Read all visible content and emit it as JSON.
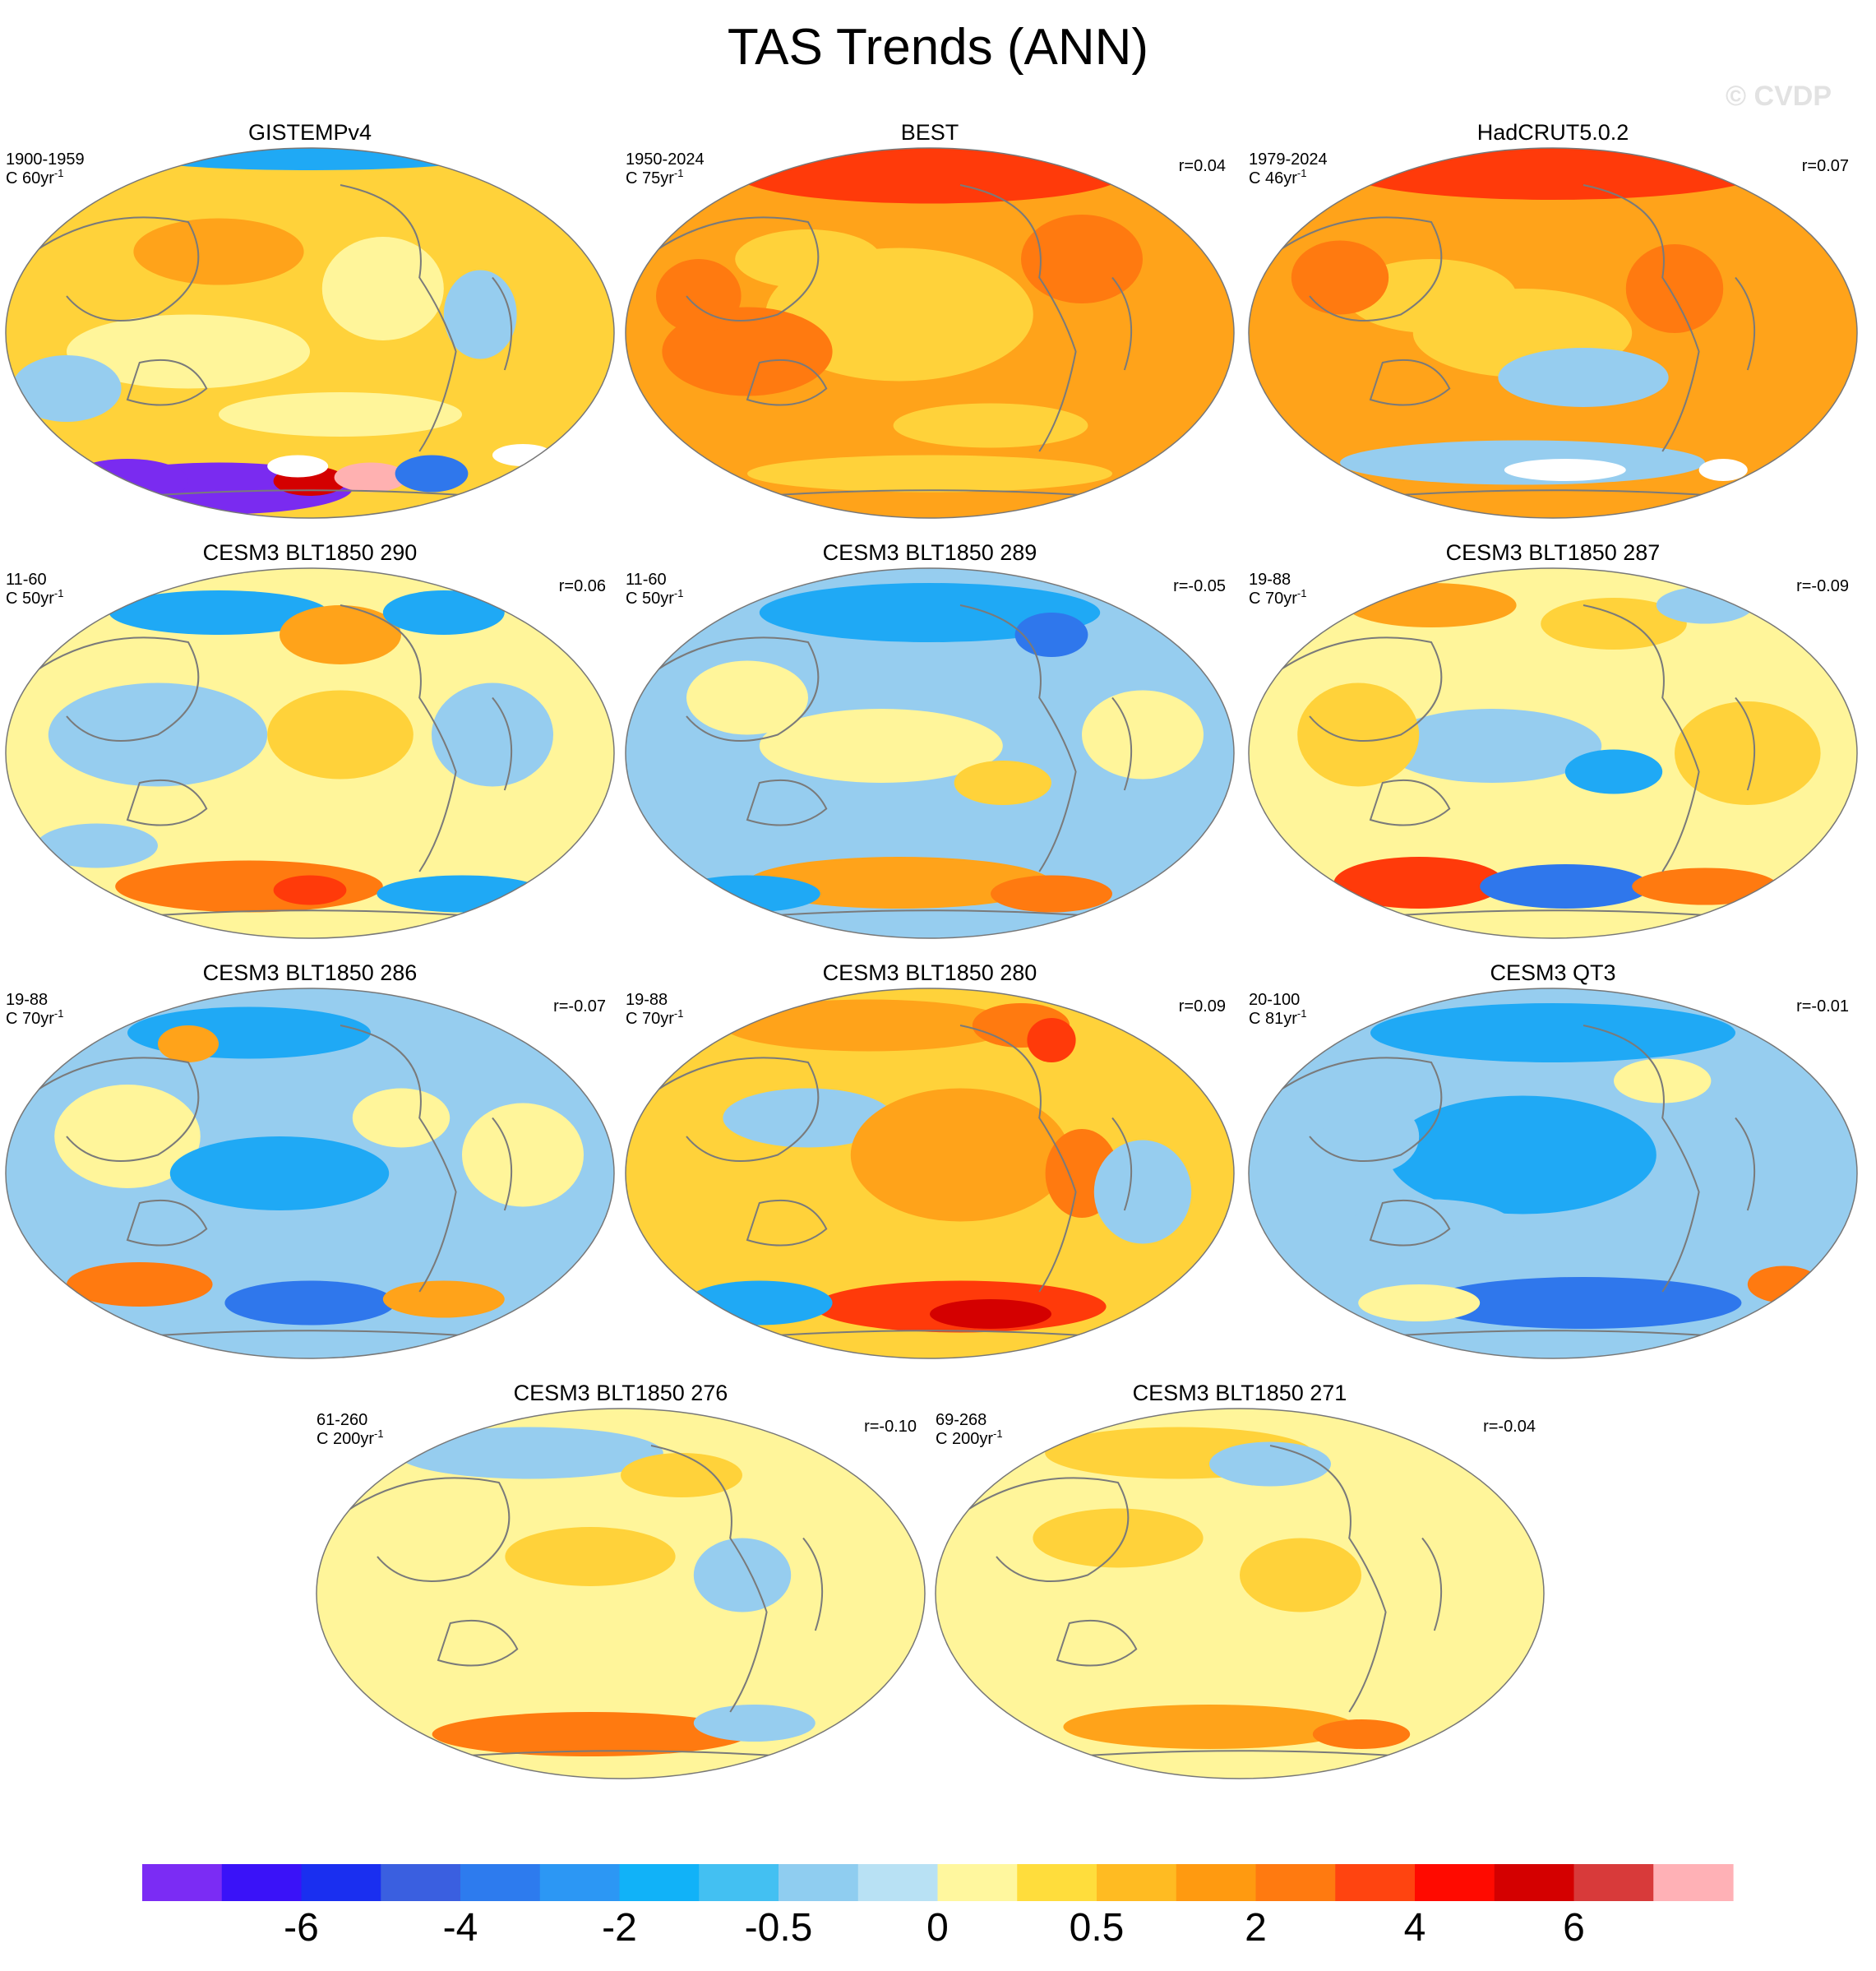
{
  "page_title": "TAS Trends (ANN)",
  "watermark": "© CVDP",
  "palette": {
    "cold_deep": "#7a2bf0",
    "cold": "#2f77ec",
    "cold_mid": "#1fa9f5",
    "cold_light": "#96cdef",
    "neutral_light": "#fff59a",
    "warm_light": "#ffd23a",
    "warm": "#ffa31a",
    "warm_mid": "#ff7a10",
    "hot": "#ff3a0a",
    "hot_deep": "#d40000",
    "pink": "#ffb1b1",
    "coast": "#7a7a7a",
    "missing": "#ffffff",
    "outline": "#777777"
  },
  "chart_data": {
    "type": "map-panels",
    "variable": "TAS",
    "season": "ANN",
    "panels": [
      {
        "title": "GISTEMPv4",
        "period": "1900-1959",
        "units": "C 60yr",
        "units_sup": "-1",
        "r": "",
        "pattern": "obs_early"
      },
      {
        "title": "BEST",
        "period": "1950-2024",
        "units": "C 75yr",
        "units_sup": "-1",
        "r": "r=0.04",
        "pattern": "obs_warm"
      },
      {
        "title": "HadCRUT5.0.2",
        "period": "1979-2024",
        "units": "C 46yr",
        "units_sup": "-1",
        "r": "r=0.07",
        "pattern": "obs_recent"
      },
      {
        "title": "CESM3 BLT1850 290",
        "period": "11-60",
        "units": "C 50yr",
        "units_sup": "-1",
        "r": "r=0.06",
        "pattern": "mixed_a"
      },
      {
        "title": "CESM3 BLT1850 289",
        "period": "11-60",
        "units": "C 50yr",
        "units_sup": "-1",
        "r": "r=-0.05",
        "pattern": "cool_a"
      },
      {
        "title": "CESM3 BLT1850 287",
        "period": "19-88",
        "units": "C 70yr",
        "units_sup": "-1",
        "r": "r=-0.09",
        "pattern": "mixed_b"
      },
      {
        "title": "CESM3 BLT1850 286",
        "period": "19-88",
        "units": "C 70yr",
        "units_sup": "-1",
        "r": "r=-0.07",
        "pattern": "cool_b"
      },
      {
        "title": "CESM3 BLT1850 280",
        "period": "19-88",
        "units": "C 70yr",
        "units_sup": "-1",
        "r": "r=0.09",
        "pattern": "warm_b"
      },
      {
        "title": "CESM3 QT3",
        "period": "20-100",
        "units": "C 81yr",
        "units_sup": "-1",
        "r": "r=-0.01",
        "pattern": "cool_c"
      },
      {
        "title": "CESM3 BLT1850 276",
        "period": "61-260",
        "units": "C 200yr",
        "units_sup": "-1",
        "r": "r=-0.10",
        "pattern": "mild_a"
      },
      {
        "title": "CESM3 BLT1850 271",
        "period": "69-268",
        "units": "C 200yr",
        "units_sup": "-1",
        "r": "r=-0.04",
        "pattern": "mild_b"
      }
    ],
    "colorbar": {
      "colors": [
        "#7b2cf4",
        "#3a12f8",
        "#1a2ff0",
        "#3a5fe0",
        "#2d7bee",
        "#2c97f4",
        "#11b2f8",
        "#43c0f2",
        "#8fcdf0",
        "#b8e1f4",
        "#fff79e",
        "#ffdd3c",
        "#ffbb22",
        "#ff9a10",
        "#ff7a10",
        "#ff4410",
        "#ff0a00",
        "#d40000",
        "#d83a3a",
        "#ffb1b6"
      ],
      "tick_labels": [
        "-6",
        "-4",
        "-2",
        "-0.5",
        "0",
        "0.5",
        "2",
        "4",
        "6"
      ],
      "tick_boundaries": [
        2,
        4,
        6,
        8,
        10,
        12,
        14,
        16,
        18
      ]
    }
  }
}
